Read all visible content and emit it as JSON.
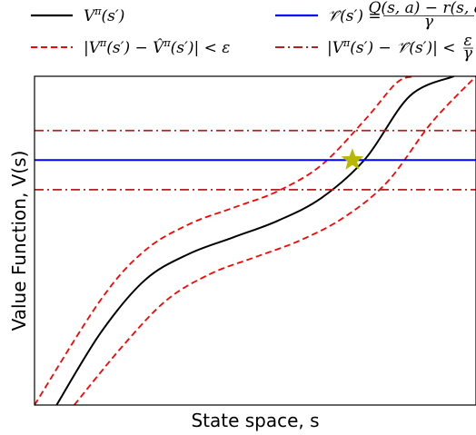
{
  "chart_data": {
    "type": "line",
    "title": "",
    "xlabel": "State space, s",
    "ylabel": "Value Function, V(s)",
    "xticks": [],
    "yticks": [],
    "xlim": [
      0,
      1
    ],
    "ylim": [
      0,
      1
    ],
    "grid": false,
    "legend_placement": "top, above plot, two columns",
    "series": [
      {
        "name": "V^π(s′)",
        "style": "solid",
        "color": "#000000",
        "x": [
          0.05,
          0.15,
          0.25,
          0.35,
          0.45,
          0.55,
          0.65,
          0.75,
          0.85,
          0.95
        ],
        "y": [
          0.0,
          0.22,
          0.38,
          0.46,
          0.51,
          0.56,
          0.63,
          0.75,
          0.94,
          1.0
        ]
      },
      {
        "name": "|V^π(s′) − V̂^π(s′)| < ε",
        "style": "dashed",
        "color": "#ff0000",
        "x": [
          0.0,
          0.15,
          0.25,
          0.35,
          0.45,
          0.55,
          0.65,
          0.75,
          0.82,
          0.86
        ],
        "y": [
          0.0,
          0.32,
          0.47,
          0.55,
          0.6,
          0.65,
          0.73,
          0.87,
          0.98,
          1.0
        ]
      },
      {
        "name": "|V^π(s′) − V̂^π(s′)| < ε (lower)",
        "style": "dashed",
        "color": "#ff0000",
        "x": [
          0.09,
          0.2,
          0.3,
          0.4,
          0.5,
          0.6,
          0.7,
          0.8,
          0.9,
          1.0
        ],
        "y": [
          0.0,
          0.18,
          0.32,
          0.4,
          0.45,
          0.5,
          0.57,
          0.68,
          0.86,
          1.0
        ]
      },
      {
        "name": "𝒱̂(s′) = (Q(s,a) − r(s,a)) / γ",
        "style": "solid",
        "color": "#0000ff",
        "x": [
          0,
          1
        ],
        "y": [
          0.745,
          0.745
        ]
      },
      {
        "name": "|V^π(s′) − 𝒱̂(s′)| < ε/γ",
        "style": "dashdot",
        "color": "#b22222",
        "x": [
          0,
          1
        ],
        "y": [
          0.835,
          0.835
        ]
      },
      {
        "name": "|V^π(s′) − 𝒱̂(s′)| < ε/γ (lower)",
        "style": "dashdot",
        "color": "#b22222",
        "x": [
          0,
          1
        ],
        "y": [
          0.655,
          0.655
        ]
      }
    ],
    "marker": {
      "shape": "star",
      "color": "#b8b800",
      "x": 0.72,
      "y": 0.745
    }
  },
  "legend": {
    "item1": {
      "label": "V",
      "sup": "π",
      "rest": "(s′)",
      "color": "#000000",
      "style": "solid"
    },
    "item2": {
      "label": "𝒱̂(s′) = ",
      "num": "Q(s, a) − r(s, a)",
      "den": "γ",
      "color": "#0000ff",
      "style": "solid"
    },
    "item3": {
      "label": "|V",
      "sup": "π",
      "rest": "(s′) − V̂",
      "sup2": "π",
      "rest2": "(s′)| < ε",
      "color": "#ff0000",
      "style": "dashed"
    },
    "item4": {
      "label": "|V",
      "sup": "π",
      "rest": "(s′) − 𝒱̂(s′)| < ",
      "num": "ε",
      "den": "γ",
      "color": "#b22222",
      "style": "dashdot"
    }
  }
}
